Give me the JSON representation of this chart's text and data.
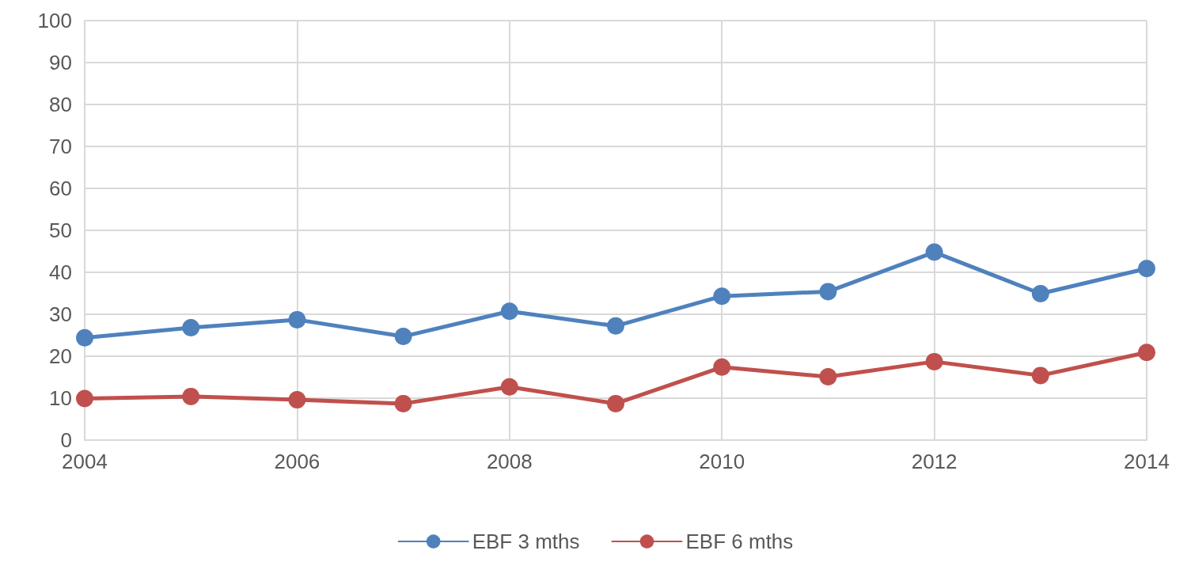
{
  "chart_data": {
    "type": "line",
    "x": [
      2004,
      2005,
      2006,
      2007,
      2008,
      2009,
      2010,
      2011,
      2012,
      2013,
      2014
    ],
    "series": [
      {
        "name": "EBF 3 mths",
        "color": "#4f81bd",
        "values": [
          24.4,
          26.8,
          28.7,
          24.7,
          30.7,
          27.2,
          34.3,
          35.4,
          44.8,
          34.9,
          40.9
        ]
      },
      {
        "name": "EBF 6 mths",
        "color": "#c0504d",
        "values": [
          9.9,
          10.4,
          9.6,
          8.7,
          12.7,
          8.7,
          17.4,
          15.1,
          18.7,
          15.4,
          20.9
        ]
      }
    ],
    "xlim": [
      2004,
      2014
    ],
    "xticks": [
      2004,
      2006,
      2008,
      2010,
      2012,
      2014
    ],
    "ylim": [
      0,
      100
    ],
    "yticks": [
      0,
      10,
      20,
      30,
      40,
      50,
      60,
      70,
      80,
      90,
      100
    ],
    "grid": true,
    "legend": "bottom",
    "marker": "circle",
    "line_style": "solid"
  }
}
